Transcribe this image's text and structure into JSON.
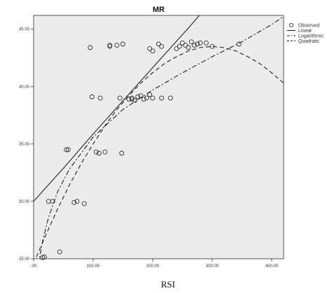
{
  "chart_data": {
    "type": "scatter",
    "title": "MR",
    "xlabel": "RSI",
    "ylabel": "",
    "xlim": [
      0,
      420
    ],
    "ylim": [
      25,
      46.2
    ],
    "x_ticks": [
      {
        "value": 0,
        "label": ".00"
      },
      {
        "value": 100,
        "label": "100.00"
      },
      {
        "value": 200,
        "label": "200.00"
      },
      {
        "value": 300,
        "label": "300.00"
      },
      {
        "value": 400,
        "label": "400.00"
      }
    ],
    "y_ticks": [
      {
        "value": 25,
        "label": "25.00"
      },
      {
        "value": 30,
        "label": "30.00"
      },
      {
        "value": 35,
        "label": "35.00"
      },
      {
        "value": 40,
        "label": "40.00"
      },
      {
        "value": 45,
        "label": "45.00"
      }
    ],
    "grid": false,
    "legend_position": "right",
    "legend": [
      "Observed",
      "Linear",
      "Logarithmic",
      "Quadratic"
    ],
    "observed": {
      "name": "Observed",
      "x": [
        15,
        18,
        44,
        25,
        32,
        55,
        58,
        68,
        73,
        85,
        95,
        98,
        105,
        110,
        112,
        120,
        128,
        128,
        140,
        148,
        145,
        150,
        160,
        165,
        170,
        165,
        175,
        180,
        185,
        190,
        195,
        200,
        200,
        195,
        210,
        215,
        215,
        230,
        240,
        245,
        250,
        255,
        260,
        265,
        270,
        275,
        280,
        290,
        300,
        345
      ],
      "y": [
        25.1,
        25.15,
        25.6,
        30.0,
        30.0,
        34.5,
        34.5,
        29.9,
        30.0,
        29.8,
        43.4,
        39.1,
        34.3,
        34.2,
        39.0,
        34.3,
        43.5,
        43.6,
        43.6,
        34.2,
        39.0,
        43.7,
        38.9,
        38.9,
        38.8,
        39.0,
        39.1,
        39.2,
        38.9,
        39.0,
        39.3,
        43.1,
        39.0,
        43.3,
        43.7,
        43.5,
        39.0,
        39.0,
        43.3,
        43.5,
        43.8,
        43.6,
        43.4,
        43.9,
        43.6,
        43.7,
        43.8,
        43.8,
        43.5,
        43.7
      ]
    },
    "fits": [
      {
        "name": "Linear",
        "style": "solid",
        "x": [
          0,
          52,
          104,
          156,
          208,
          260,
          312
        ],
        "y": [
          30.0,
          33.0,
          36.1,
          39.1,
          42.1,
          45.1,
          48.2
        ]
      },
      {
        "name": "Logarithmic",
        "style": "dash-dot",
        "x": [
          8,
          15,
          25,
          40,
          60,
          100,
          150,
          200,
          250,
          300,
          350,
          400,
          420
        ],
        "y": [
          24.5,
          26.5,
          28.6,
          30.8,
          32.8,
          35.6,
          38.0,
          39.7,
          41.2,
          42.6,
          43.9,
          45.4,
          46.1
        ]
      },
      {
        "name": "Quadratic",
        "style": "dashed",
        "x": [
          0,
          20,
          40,
          60,
          80,
          100,
          120,
          140,
          160,
          180,
          200,
          220,
          240,
          260,
          280,
          300,
          320,
          340,
          360,
          380,
          400,
          420
        ],
        "y": [
          24.6,
          27.0,
          29.3,
          31.4,
          33.3,
          35.0,
          36.6,
          38.0,
          39.2,
          40.3,
          41.2,
          42.0,
          42.6,
          43.1,
          43.4,
          43.5,
          43.4,
          43.1,
          42.6,
          42.0,
          41.2,
          40.3
        ]
      }
    ]
  }
}
